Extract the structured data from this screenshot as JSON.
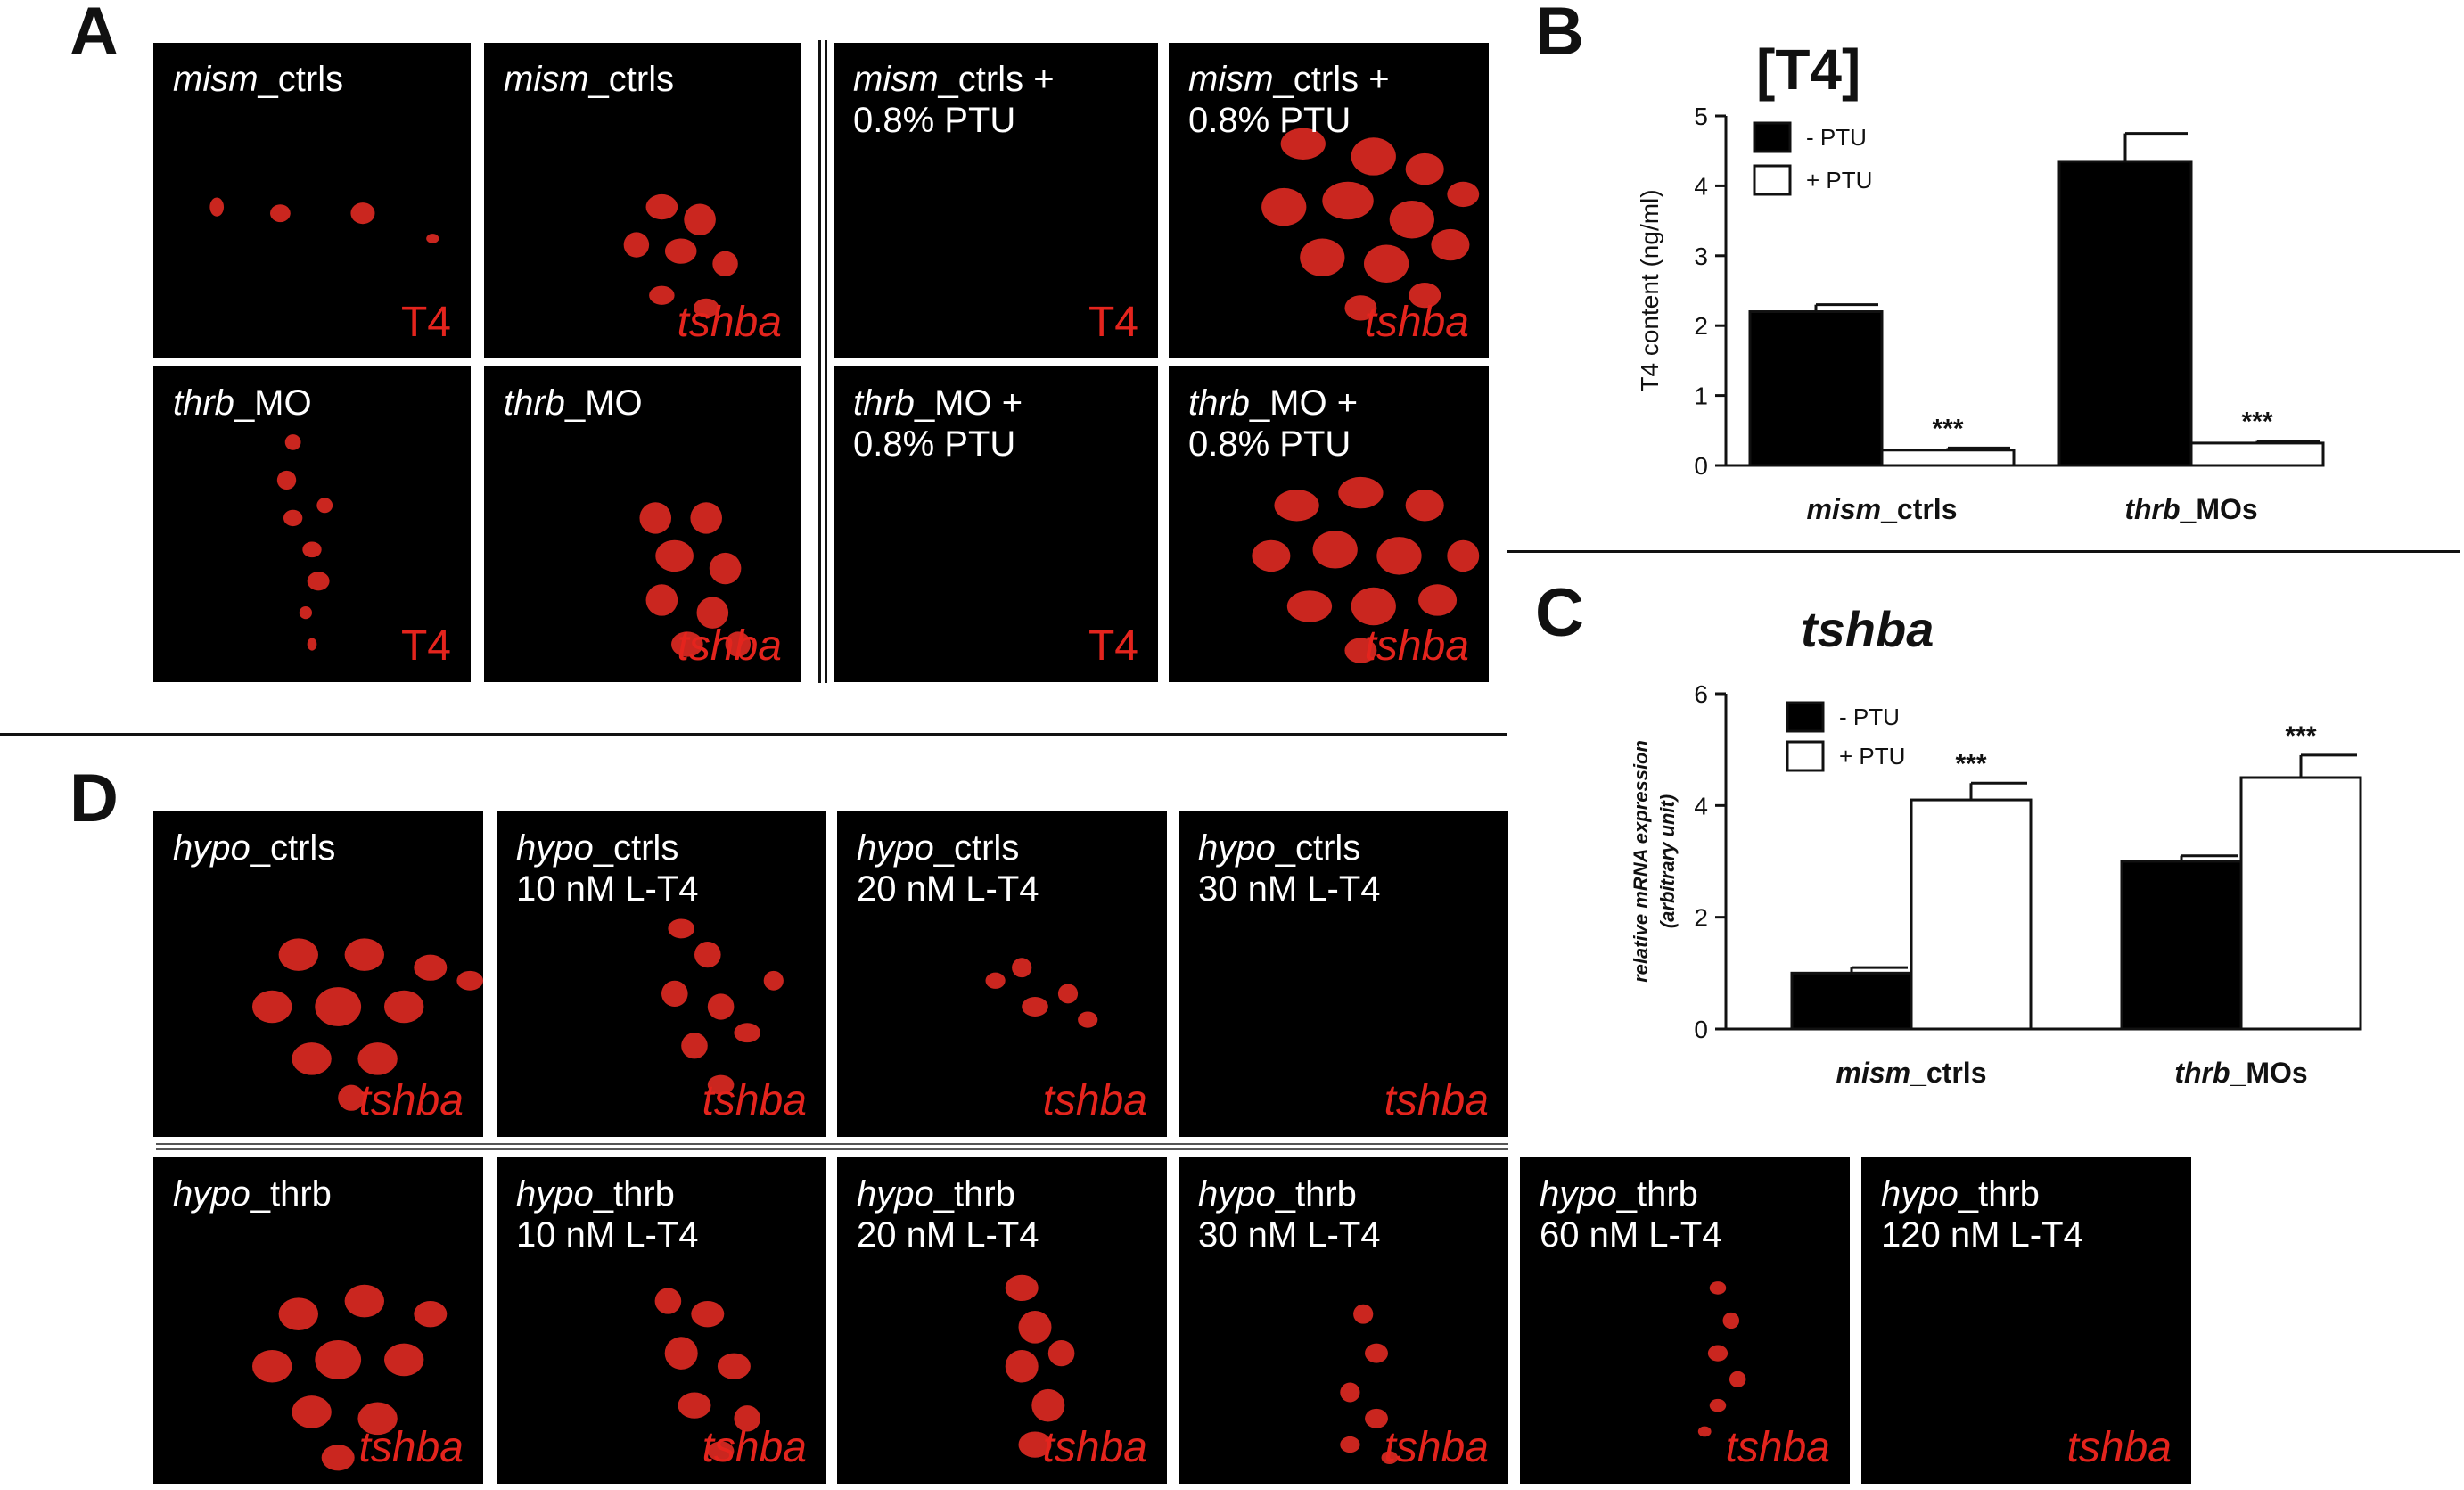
{
  "panels": {
    "a": "A",
    "b": "B",
    "c": "C",
    "d": "D"
  },
  "panel_a": {
    "tiles": [
      {
        "it": "mism",
        "rest": "_ctrls",
        "line2": "",
        "stain": "T4"
      },
      {
        "it": "mism",
        "rest": "_ctrls",
        "line2": "",
        "stain": "tshba"
      },
      {
        "it": "mism",
        "rest": "_ctrls +",
        "line2": "0.8% PTU",
        "stain": "T4"
      },
      {
        "it": "mism",
        "rest": "_ctrls +",
        "line2": "0.8% PTU",
        "stain": "tshba"
      },
      {
        "it": "thrb",
        "rest": "_MO",
        "line2": "",
        "stain": "T4"
      },
      {
        "it": "thrb",
        "rest": "_MO",
        "line2": "",
        "stain": "tshba"
      },
      {
        "it": "thrb",
        "rest": "_MO +",
        "line2": "0.8% PTU",
        "stain": "T4"
      },
      {
        "it": "thrb",
        "rest": "_MO +",
        "line2": "0.8% PTU",
        "stain": "tshba"
      }
    ]
  },
  "panel_d": {
    "tiles": [
      {
        "it": "hypo",
        "rest": "_ctrls",
        "line2": "",
        "stain": "tshba"
      },
      {
        "it": "hypo",
        "rest": "_ctrls",
        "line2": "10 nM L-T4",
        "stain": "tshba"
      },
      {
        "it": "hypo",
        "rest": "_ctrls",
        "line2": "20 nM L-T4",
        "stain": "tshba"
      },
      {
        "it": "hypo",
        "rest": "_ctrls",
        "line2": "30 nM L-T4",
        "stain": "tshba"
      },
      {
        "it": "hypo",
        "rest": "_thrb",
        "line2": "",
        "stain": "tshba"
      },
      {
        "it": "hypo",
        "rest": "_thrb",
        "line2": "10 nM L-T4",
        "stain": "tshba"
      },
      {
        "it": "hypo",
        "rest": "_thrb",
        "line2": "20 nM L-T4",
        "stain": "tshba"
      },
      {
        "it": "hypo",
        "rest": "_thrb",
        "line2": "30 nM L-T4",
        "stain": "tshba"
      },
      {
        "it": "hypo",
        "rest": "_thrb",
        "line2": "60 nM L-T4",
        "stain": "tshba"
      },
      {
        "it": "hypo",
        "rest": "_thrb",
        "line2": "120 nM L-T4",
        "stain": "tshba"
      }
    ]
  },
  "chart_data": [
    {
      "type": "bar",
      "title": "[T4]",
      "ylabel": "T4 content (ng/ml)",
      "xlabel": "",
      "ylim": [
        0,
        5
      ],
      "yticks": [
        "0",
        "1",
        "2",
        "3",
        "4",
        "5"
      ],
      "categories": [
        {
          "it": "mism",
          "rest": "_ctrls"
        },
        {
          "it": "thrb",
          "rest": "_MOs"
        }
      ],
      "series": [
        {
          "name": "- PTU",
          "fill": "#000000",
          "values": [
            2.2,
            4.35
          ],
          "errors": [
            0.1,
            0.4
          ]
        },
        {
          "name": "+ PTU",
          "fill": "#ffffff",
          "values": [
            0.22,
            0.32
          ],
          "errors": [
            0.03,
            0.03
          ]
        }
      ],
      "significance": [
        "***",
        "***"
      ],
      "legend": "top-left"
    },
    {
      "type": "bar",
      "title": "tshba",
      "ylabel": "relative mRNA expression",
      "ylabel2": "(arbitrary unit)",
      "xlabel": "",
      "ylim": [
        0,
        6
      ],
      "yticks": [
        "0",
        "2",
        "4",
        "6"
      ],
      "categories": [
        {
          "it": "mism",
          "rest": "_ctrls"
        },
        {
          "it": "thrb",
          "rest": "_MOs"
        }
      ],
      "series": [
        {
          "name": "- PTU",
          "fill": "#000000",
          "values": [
            1.0,
            3.0
          ],
          "errors": [
            0.1,
            0.1
          ]
        },
        {
          "name": "+ PTU",
          "fill": "#ffffff",
          "values": [
            4.1,
            4.5
          ],
          "errors": [
            0.3,
            0.4
          ]
        }
      ],
      "significance": [
        "***",
        "***"
      ],
      "legend": "top-left"
    }
  ],
  "colors": {
    "stain": "#e4241d",
    "tile_bg": "#000000",
    "cell": "#e02a22"
  }
}
